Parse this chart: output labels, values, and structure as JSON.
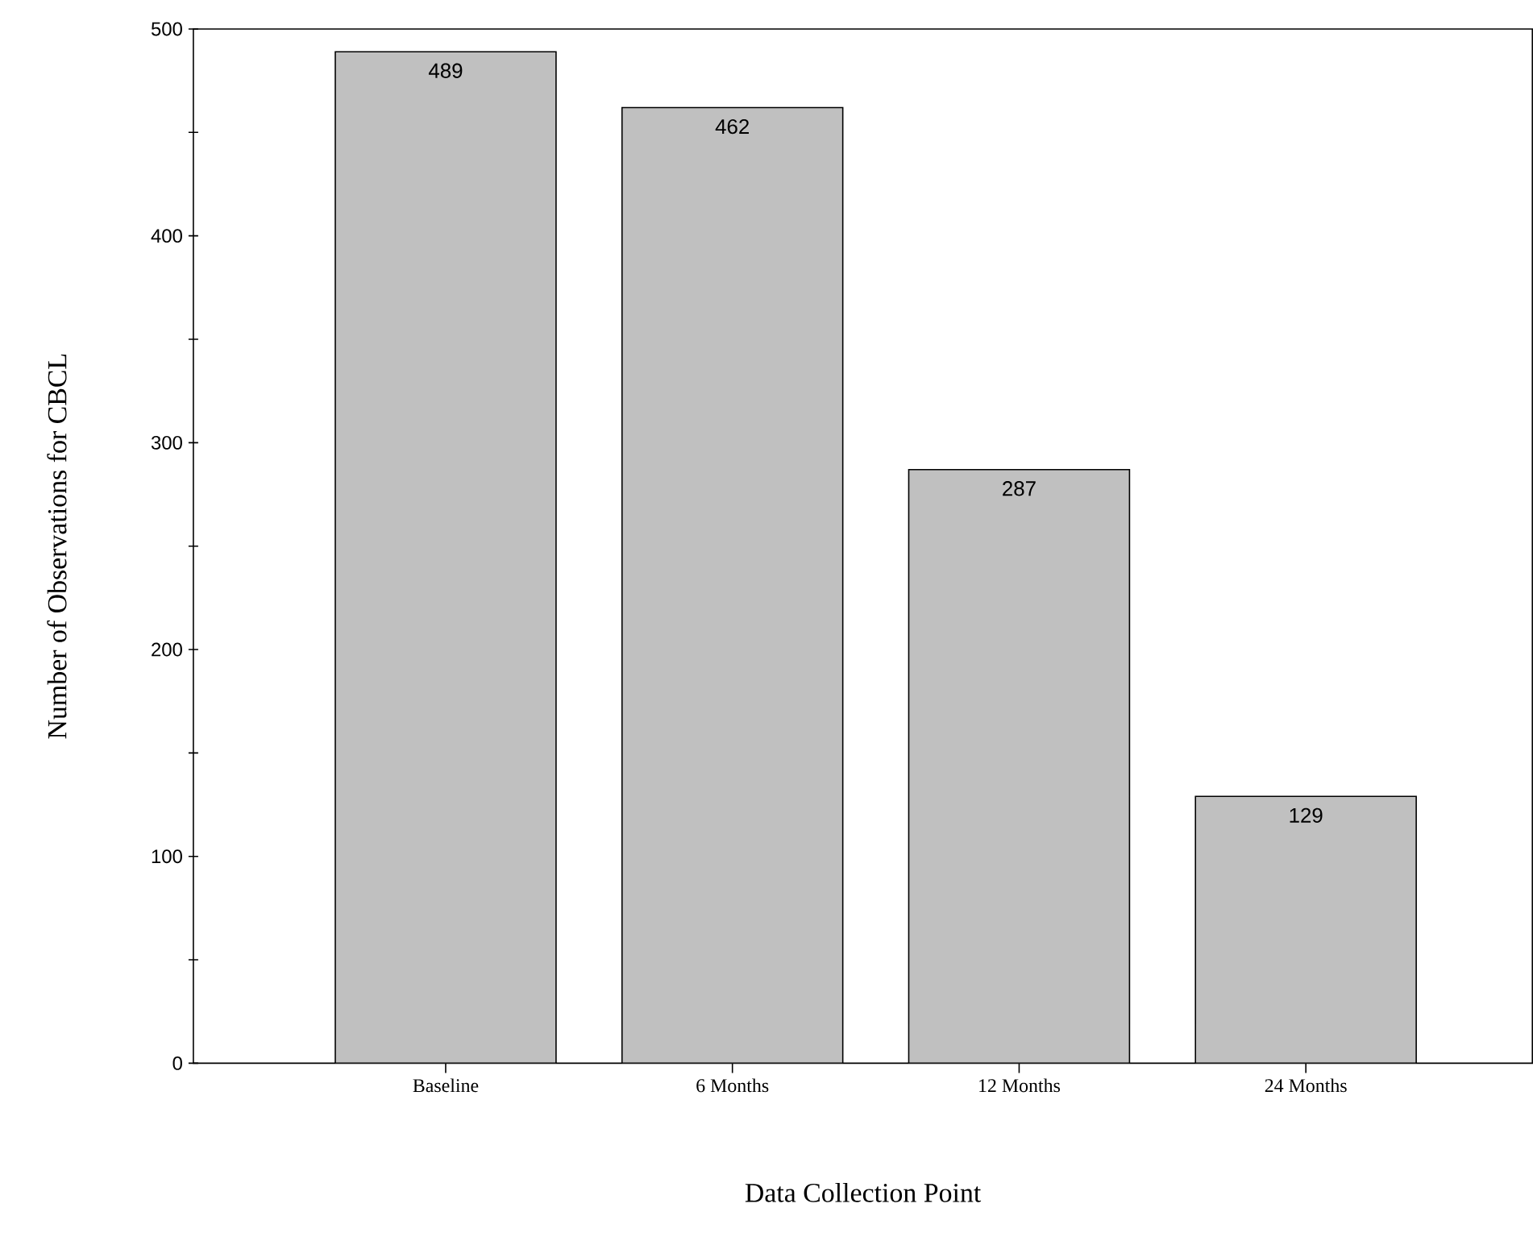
{
  "chart_data": {
    "type": "bar",
    "xlabel": "Data Collection Point",
    "ylabel": "Number of Observations for CBCL",
    "categories": [
      "Baseline",
      "6 Months",
      "12 Months",
      "24 Months"
    ],
    "values": [
      489,
      462,
      287,
      129
    ],
    "color": "#c0c0c0",
    "data_labels": true,
    "ylim": [
      0,
      500
    ],
    "yticks": [
      0,
      100,
      200,
      300,
      400,
      500
    ]
  }
}
